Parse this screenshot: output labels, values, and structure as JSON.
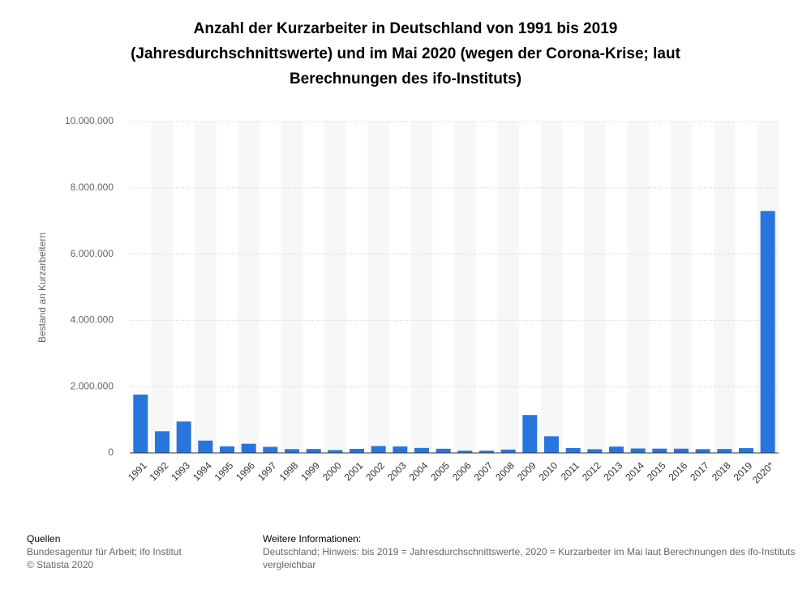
{
  "chart_data": {
    "type": "bar",
    "title": [
      "Anzahl der Kurzarbeiter in Deutschland von 1991 bis 2019",
      "(Jahresdurchschnittswerte) und im Mai 2020 (wegen der Corona-Krise; laut",
      "Berechnungen des ifo-Instituts)"
    ],
    "y_label": "Bestand an Kurzarbeitern",
    "categories": [
      "1991",
      "1992",
      "1993",
      "1994",
      "1995",
      "1996",
      "1997",
      "1998",
      "1999",
      "2000",
      "2001",
      "2002",
      "2003",
      "2004",
      "2005",
      "2006",
      "2007",
      "2008",
      "2009",
      "2010",
      "2011",
      "2012",
      "2013",
      "2014",
      "2015",
      "2016",
      "2017",
      "2018",
      "2019",
      "2020*"
    ],
    "values": [
      1761000,
      653000,
      948000,
      372000,
      199000,
      277000,
      183000,
      115000,
      119000,
      86000,
      123000,
      207000,
      195000,
      151000,
      126000,
      67000,
      68000,
      102000,
      1144000,
      503000,
      148000,
      112000,
      191000,
      134000,
      130000,
      128000,
      114000,
      118000,
      145000,
      7300000
    ],
    "color": "#2876dd",
    "ylim": [
      0,
      10000000
    ],
    "yticks": [
      0,
      {
        "value": 2000000,
        "label": "2.000.000"
      },
      {
        "value": 4000000,
        "label": "4.000.000"
      },
      {
        "value": 6000000,
        "label": "6.000.000"
      },
      {
        "value": 8000000,
        "label": "8.000.000"
      },
      {
        "value": 10000000,
        "label": "10.000.000"
      }
    ],
    "grid": true
  },
  "footer": {
    "sources_title": "Quellen",
    "sources": [
      "Bundesagentur für Arbeit; ifo Institut",
      "© Statista 2020"
    ],
    "info_title": "Weitere Informationen:",
    "info": [
      "Deutschland; Hinweis: bis 2019 = Jahresdurchschnittswerte, 2020 = Kurzarbeiter im Mai laut Berechnungen des ifo-Instituts",
      "vergleichbar"
    ]
  }
}
